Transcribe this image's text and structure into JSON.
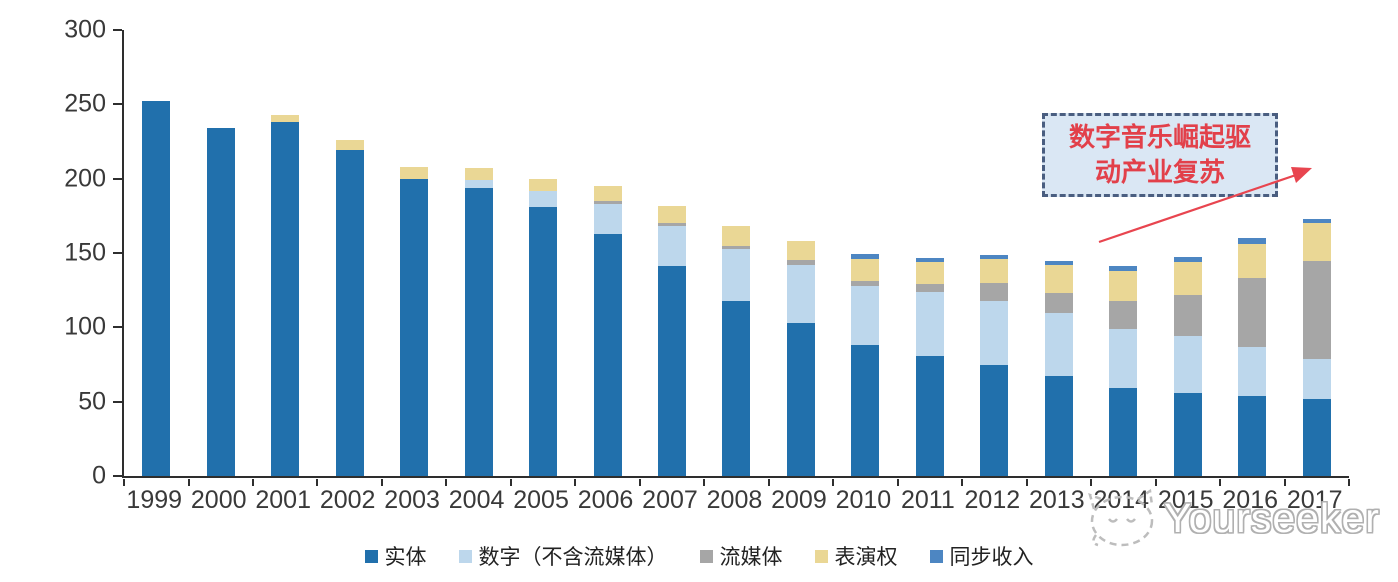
{
  "watermark": {
    "brand": "Yourseeker",
    "logo": "cat-face-logo"
  },
  "chart_data": {
    "type": "bar",
    "stacked": true,
    "title": "",
    "categories": [
      "1999",
      "2000",
      "2001",
      "2002",
      "2003",
      "2004",
      "2005",
      "2006",
      "2007",
      "2008",
      "2009",
      "2010",
      "2011",
      "2012",
      "2013",
      "2014",
      "2015",
      "2016",
      "2017"
    ],
    "series": [
      {
        "name": "实体",
        "color": "#2170AC",
        "values": [
          252,
          234,
          238,
          219,
          200,
          194,
          181,
          163,
          141,
          118,
          103,
          88,
          81,
          75,
          67,
          59,
          56,
          54,
          52
        ]
      },
      {
        "name": "数字（不含流媒体）",
        "color": "#BDD7EC",
        "values": [
          0,
          0,
          0,
          0,
          0,
          5,
          11,
          20,
          27,
          35,
          39,
          40,
          43,
          43,
          43,
          40,
          38,
          33,
          27
        ]
      },
      {
        "name": "流媒体",
        "color": "#A6A6A6",
        "values": [
          0,
          0,
          0,
          0,
          0,
          0,
          0,
          2,
          2,
          2,
          3,
          3,
          5,
          12,
          13,
          19,
          28,
          46,
          66
        ]
      },
      {
        "name": "表演权",
        "color": "#EAD795",
        "values": [
          0,
          0,
          5,
          7,
          8,
          8,
          8,
          10,
          12,
          13,
          13,
          15,
          15,
          16,
          19,
          20,
          22,
          23,
          25
        ]
      },
      {
        "name": "同步收入",
        "color": "#4D86C2",
        "values": [
          0,
          0,
          0,
          0,
          0,
          0,
          0,
          0,
          0,
          0,
          0,
          3,
          3,
          3,
          3,
          3,
          3,
          4,
          3
        ]
      }
    ],
    "ylim": [
      0,
      300
    ],
    "yticks": [
      0,
      50,
      100,
      150,
      200,
      250,
      300
    ],
    "grid": false,
    "legend_position": "bottom",
    "annotation": {
      "line1": "数字音乐崛起驱",
      "line2": "动产业复苏",
      "text_color": "#E2404A",
      "box_fill": "#DAE7F4",
      "box_border": "#4A5E80",
      "arrow_color": "#E8454F"
    }
  }
}
